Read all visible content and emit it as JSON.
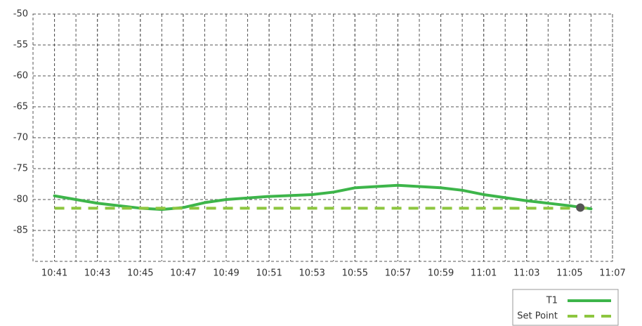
{
  "chart_data": {
    "type": "line",
    "x": [
      641,
      643,
      645,
      646,
      647,
      648,
      649,
      651,
      653,
      654,
      655,
      657,
      659,
      660,
      661,
      663,
      665,
      666
    ],
    "series": [
      {
        "name": "T1",
        "color": "#3db54a",
        "style": "solid",
        "values": [
          -79.4,
          -80.6,
          -81.4,
          -81.6,
          -81.3,
          -80.5,
          -80.0,
          -79.5,
          -79.2,
          -78.8,
          -78.1,
          -77.7,
          -78.1,
          -78.5,
          -79.2,
          -80.2,
          -81.0,
          -81.5
        ]
      },
      {
        "name": "Set Point",
        "color": "#8dc63f",
        "style": "dashed",
        "values": [
          -81.4,
          -81.4,
          -81.4,
          -81.4,
          -81.4,
          -81.4,
          -81.4,
          -81.4,
          -81.4,
          -81.4,
          -81.4,
          -81.4,
          -81.4,
          -81.4,
          -81.4,
          -81.4,
          -81.4,
          -81.4
        ]
      }
    ],
    "marker": {
      "x": 665.5,
      "y": -81.3,
      "color": "#555555"
    },
    "xlim": [
      640,
      667
    ],
    "ylim": [
      -90,
      -50
    ],
    "yticks": [
      -50,
      -55,
      -60,
      -65,
      -70,
      -75,
      -80,
      -85
    ],
    "xticks": [
      {
        "value": 641,
        "label": "10:41"
      },
      {
        "value": 643,
        "label": "10:43"
      },
      {
        "value": 645,
        "label": "10:45"
      },
      {
        "value": 647,
        "label": "10:47"
      },
      {
        "value": 649,
        "label": "10:49"
      },
      {
        "value": 651,
        "label": "10:51"
      },
      {
        "value": 653,
        "label": "10:53"
      },
      {
        "value": 655,
        "label": "10:55"
      },
      {
        "value": 657,
        "label": "10:57"
      },
      {
        "value": 659,
        "label": "10:59"
      },
      {
        "value": 661,
        "label": "11:01"
      },
      {
        "value": 663,
        "label": "11:03"
      },
      {
        "value": 665,
        "label": "11:05"
      },
      {
        "value": 667,
        "label": "11:07"
      }
    ],
    "grid": true,
    "legend": "bottom-right"
  }
}
